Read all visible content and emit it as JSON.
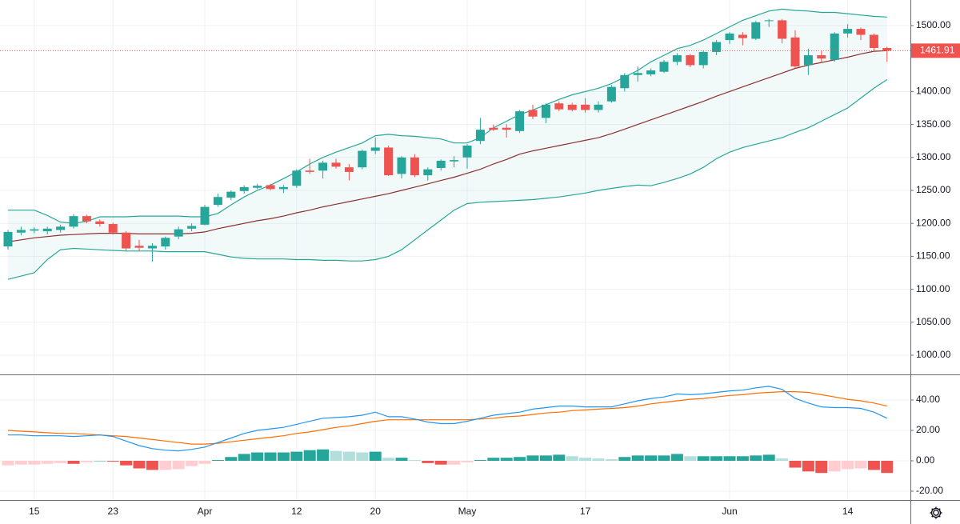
{
  "chart_data": [
    {
      "type": "candlestick",
      "categories": [
        null,
        null,
        "15",
        null,
        null,
        null,
        null,
        null,
        "23",
        null,
        null,
        null,
        null,
        null,
        null,
        "Apr",
        null,
        null,
        null,
        null,
        null,
        null,
        "12",
        null,
        null,
        null,
        null,
        null,
        "20",
        null,
        null,
        null,
        null,
        null,
        null,
        "May",
        null,
        null,
        null,
        null,
        null,
        null,
        null,
        null,
        "17",
        null,
        null,
        null,
        null,
        null,
        null,
        null,
        null,
        null,
        null,
        "Jun",
        null,
        null,
        null,
        null,
        null,
        null,
        null,
        null,
        "14",
        null,
        null,
        null
      ],
      "open": [
        1165,
        1186,
        1189,
        1188,
        1190,
        1195,
        1211,
        1203,
        1199,
        1186,
        1166,
        1162,
        1165,
        1180,
        1192,
        1198,
        1228,
        1239,
        1249,
        1254,
        1258,
        1252,
        1257,
        1280,
        1280,
        1292,
        1285,
        1285,
        1310,
        1315,
        1275,
        1300,
        1273,
        1284,
        1294,
        1300,
        1325,
        1345,
        1345,
        1340,
        1372,
        1360,
        1382,
        1380,
        1380,
        1372,
        1385,
        1405,
        1425,
        1426,
        1430,
        1445,
        1455,
        1440,
        1460,
        1478,
        1486,
        1480,
        1507,
        1508,
        1482,
        1440,
        1455,
        1448,
        1488,
        1495,
        1486,
        1466
      ],
      "high": [
        1190,
        1195,
        1194,
        1195,
        1198,
        1214,
        1213,
        1206,
        1201,
        1188,
        1175,
        1170,
        1180,
        1195,
        1200,
        1228,
        1245,
        1250,
        1258,
        1260,
        1260,
        1258,
        1282,
        1298,
        1295,
        1298,
        1290,
        1312,
        1330,
        1318,
        1302,
        1305,
        1285,
        1297,
        1302,
        1320,
        1360,
        1350,
        1350,
        1372,
        1380,
        1382,
        1385,
        1383,
        1390,
        1385,
        1410,
        1428,
        1438,
        1435,
        1448,
        1458,
        1457,
        1462,
        1478,
        1490,
        1490,
        1507,
        1510,
        1510,
        1493,
        1465,
        1462,
        1490,
        1502,
        1497,
        1488,
        1468
      ],
      "low": [
        1160,
        1182,
        1185,
        1183,
        1186,
        1192,
        1200,
        1195,
        1183,
        1158,
        1158,
        1142,
        1160,
        1176,
        1188,
        1197,
        1225,
        1235,
        1245,
        1252,
        1250,
        1246,
        1254,
        1275,
        1268,
        1283,
        1265,
        1282,
        1305,
        1272,
        1268,
        1270,
        1265,
        1280,
        1285,
        1283,
        1320,
        1340,
        1330,
        1337,
        1358,
        1352,
        1370,
        1370,
        1368,
        1368,
        1383,
        1400,
        1415,
        1423,
        1428,
        1440,
        1437,
        1435,
        1455,
        1472,
        1470,
        1478,
        1498,
        1473,
        1435,
        1425,
        1445,
        1445,
        1482,
        1478,
        1460,
        1445
      ],
      "close": [
        1187,
        1190,
        1191,
        1192,
        1195,
        1211,
        1203,
        1199,
        1186,
        1162,
        1163,
        1166,
        1178,
        1191,
        1196,
        1225,
        1240,
        1248,
        1255,
        1257,
        1252,
        1255,
        1280,
        1278,
        1292,
        1286,
        1278,
        1310,
        1315,
        1273,
        1300,
        1273,
        1282,
        1295,
        1296,
        1318,
        1342,
        1342,
        1342,
        1370,
        1362,
        1380,
        1373,
        1372,
        1372,
        1380,
        1407,
        1425,
        1428,
        1432,
        1445,
        1455,
        1440,
        1460,
        1475,
        1488,
        1481,
        1505,
        1508,
        1480,
        1438,
        1455,
        1450,
        1488,
        1495,
        1486,
        1466,
        1461.91
      ],
      "bollinger": {
        "upper": [
          1220,
          1220,
          1220,
          1212,
          1202,
          1200,
          1203,
          1210,
          1210,
          1210,
          1211,
          1211,
          1211,
          1211,
          1210,
          1210,
          1215,
          1228,
          1240,
          1250,
          1258,
          1268,
          1278,
          1290,
          1300,
          1308,
          1315,
          1322,
          1333,
          1335,
          1333,
          1332,
          1330,
          1328,
          1322,
          1322,
          1330,
          1345,
          1355,
          1365,
          1372,
          1380,
          1388,
          1395,
          1400,
          1405,
          1412,
          1422,
          1432,
          1445,
          1455,
          1465,
          1470,
          1478,
          1488,
          1498,
          1508,
          1515,
          1522,
          1525,
          1523,
          1522,
          1520,
          1520,
          1518,
          1516,
          1514,
          1513
        ],
        "middle": [
          1172,
          1175,
          1178,
          1180,
          1182,
          1183,
          1184,
          1185,
          1185,
          1185,
          1184,
          1184,
          1184,
          1184,
          1185,
          1187,
          1192,
          1196,
          1200,
          1204,
          1207,
          1211,
          1216,
          1220,
          1225,
          1229,
          1233,
          1237,
          1241,
          1245,
          1250,
          1255,
          1260,
          1265,
          1270,
          1276,
          1282,
          1290,
          1297,
          1305,
          1310,
          1314,
          1318,
          1322,
          1326,
          1330,
          1336,
          1343,
          1350,
          1357,
          1364,
          1371,
          1378,
          1385,
          1393,
          1400,
          1407,
          1414,
          1421,
          1428,
          1435,
          1440,
          1444,
          1448,
          1452,
          1457,
          1461,
          1462
        ],
        "lower": [
          1115,
          1120,
          1125,
          1145,
          1160,
          1162,
          1161,
          1160,
          1159,
          1158,
          1158,
          1158,
          1157,
          1157,
          1157,
          1157,
          1153,
          1149,
          1147,
          1146,
          1146,
          1146,
          1145,
          1145,
          1144,
          1144,
          1143,
          1143,
          1145,
          1150,
          1160,
          1175,
          1190,
          1205,
          1220,
          1230,
          1232,
          1233,
          1234,
          1235,
          1236,
          1238,
          1240,
          1243,
          1246,
          1250,
          1253,
          1256,
          1258,
          1257,
          1262,
          1268,
          1275,
          1285,
          1298,
          1308,
          1315,
          1320,
          1325,
          1330,
          1338,
          1345,
          1355,
          1365,
          1375,
          1390,
          1405,
          1418
        ]
      },
      "up_color": "#26a69a",
      "down_color": "#ef5350",
      "band_color": "#26a69a",
      "band_fill": "#26a69a",
      "middle_color": "#8d2f2f",
      "price_line_color": "#ef5350",
      "ylim": [
        970.9,
        1538.8
      ],
      "yticks": [
        {
          "value": 1000,
          "label": "1000.00"
        },
        {
          "value": 1050,
          "label": "1050.00"
        },
        {
          "value": 1100,
          "label": "1100.00"
        },
        {
          "value": 1150,
          "label": "1150.00"
        },
        {
          "value": 1200,
          "label": "1200.00"
        },
        {
          "value": 1250,
          "label": "1250.00"
        },
        {
          "value": 1300,
          "label": "1300.00"
        },
        {
          "value": 1350,
          "label": "1350.00"
        },
        {
          "value": 1400,
          "label": "1400.00"
        },
        {
          "value": 1500,
          "label": "1500.00"
        }
      ],
      "grid": true
    },
    {
      "type": "macd",
      "macd": [
        17,
        17,
        16.5,
        16.5,
        16.5,
        16,
        16.5,
        17,
        16,
        13,
        10,
        8,
        7,
        6.5,
        7.5,
        9,
        12,
        15,
        18,
        20,
        21,
        22,
        24,
        26,
        28,
        28.5,
        29,
        30,
        32,
        29,
        29,
        27.5,
        25.5,
        24.5,
        24.5,
        26,
        28,
        30,
        31,
        32,
        34,
        35,
        36,
        36,
        35.5,
        35.5,
        35.5,
        37.5,
        39.5,
        41,
        42,
        44,
        43.5,
        44,
        45,
        46,
        46.5,
        48,
        49,
        47,
        41,
        38,
        35.5,
        35,
        35,
        34.5,
        32,
        28
      ],
      "signal": [
        20,
        19.5,
        19,
        18.5,
        18,
        18,
        17.5,
        17,
        16.5,
        16,
        15,
        14,
        13,
        12,
        11,
        11,
        11.5,
        12.5,
        13.5,
        14.5,
        15.5,
        16.5,
        18,
        19,
        20.5,
        22,
        23,
        24.5,
        26,
        27,
        27,
        27,
        27,
        27,
        27,
        27,
        27.5,
        28,
        29,
        29.5,
        30.5,
        31.5,
        32,
        33,
        33.5,
        34,
        34.5,
        35,
        36,
        37.5,
        38.5,
        39.5,
        40.5,
        41,
        42,
        43,
        43.5,
        44.5,
        45,
        45.5,
        45.5,
        45,
        43.5,
        42,
        40.5,
        39.5,
        38,
        36
      ],
      "histogram": [
        -3,
        -2.5,
        -2.5,
        -2,
        -1.5,
        -2,
        -1,
        0,
        -0.5,
        -3,
        -5,
        -6,
        -6,
        -5.5,
        -3.5,
        -2,
        0.5,
        2.5,
        4.5,
        5.5,
        5.5,
        5.5,
        6,
        7,
        7.5,
        6.5,
        6,
        5.5,
        6,
        2,
        2,
        0.5,
        -1.5,
        -2.5,
        -2.5,
        -1,
        0.5,
        2,
        2,
        2.5,
        3.5,
        3.5,
        4,
        3,
        2,
        1.5,
        1,
        2.5,
        3.5,
        3.5,
        3.5,
        4.5,
        3,
        3,
        3,
        3,
        3,
        3.5,
        4,
        1.5,
        -4.5,
        -7,
        -8,
        -7,
        -5.5,
        -5,
        -6,
        -8
      ],
      "macd_color": "#2196f3",
      "signal_color": "#ff6d00",
      "hist_colors": {
        "rising_positive": "#26a69a",
        "falling_positive": "#b2dfdb",
        "falling_negative": "#ef5350",
        "rising_negative": "#ffcdd2"
      },
      "ylim": [
        -25.8,
        55.8
      ],
      "yticks": [
        {
          "value": -20,
          "label": "-20.00"
        },
        {
          "value": 0,
          "label": "0.00"
        },
        {
          "value": 20,
          "label": "20.00"
        },
        {
          "value": 40,
          "label": "40.00"
        }
      ],
      "grid": true
    }
  ]
}
